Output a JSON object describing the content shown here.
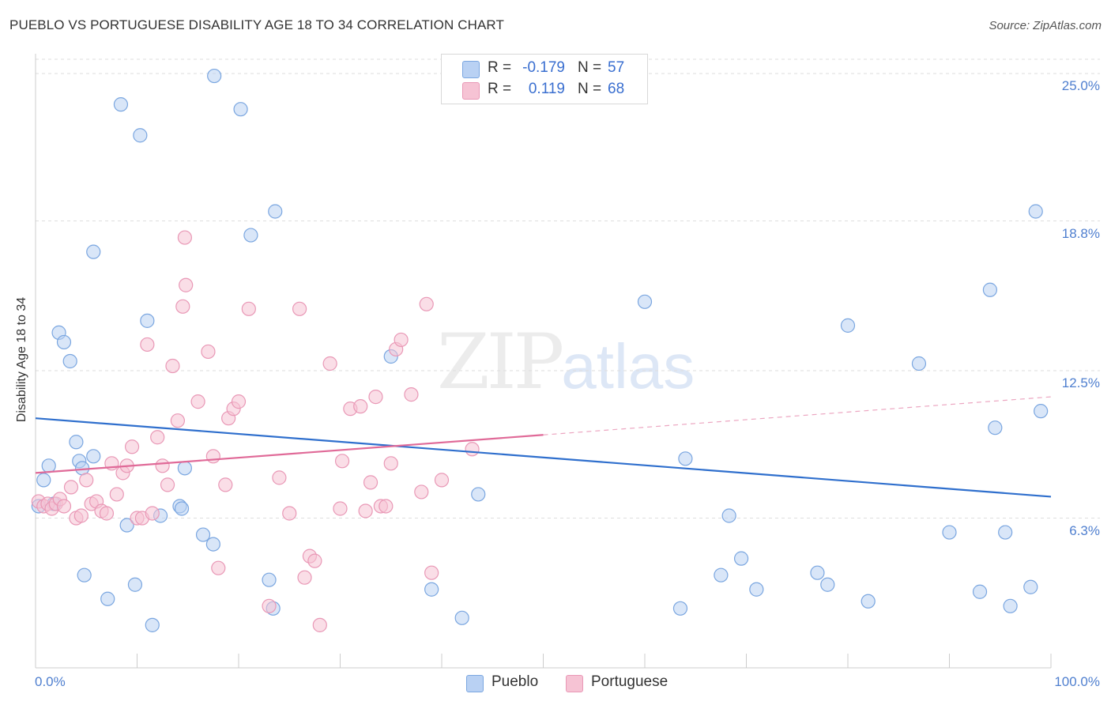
{
  "header": {
    "title": "PUEBLO VS PORTUGUESE DISABILITY AGE 18 TO 34 CORRELATION CHART",
    "source": "Source: ZipAtlas.com"
  },
  "watermark": {
    "zip": "ZIP",
    "atlas": "atlas"
  },
  "legend": {
    "pueblo": {
      "r_label": "R =",
      "r_value": "-0.179",
      "n_label": "N =",
      "n_value": "57"
    },
    "portuguese": {
      "r_label": "R =",
      "r_value": "0.119",
      "n_label": "N =",
      "n_value": "68"
    }
  },
  "bottom_legend": {
    "pueblo": "Pueblo",
    "portuguese": "Portuguese"
  },
  "colors": {
    "pueblo_fill": "#b9d1f3",
    "pueblo_stroke": "#7aa6e0",
    "pueblo_line": "#2f6fcd",
    "portuguese_fill": "#f6c3d4",
    "portuguese_stroke": "#e998b6",
    "portuguese_line": "#e06a98",
    "tick_label": "#4f7fcf"
  },
  "chart_data": {
    "type": "scatter",
    "title": "PUEBLO VS PORTUGUESE DISABILITY AGE 18 TO 34 CORRELATION CHART",
    "xlabel": "",
    "ylabel": "Disability Age 18 to 34",
    "xlim": [
      0,
      100
    ],
    "ylim": [
      0,
      25.6
    ],
    "x_tick_labels": [
      "0.0%",
      "100.0%"
    ],
    "y_ticks": [
      6.3,
      12.5,
      18.8,
      25.0
    ],
    "y_tick_labels": [
      "6.3%",
      "12.5%",
      "18.8%",
      "25.0%"
    ],
    "grid": "horizontal dashed",
    "legend_position": "top-center",
    "series": [
      {
        "name": "Pueblo",
        "points": [
          [
            0.3,
            6.8
          ],
          [
            0.8,
            7.9
          ],
          [
            1.3,
            8.5
          ],
          [
            1.8,
            6.9
          ],
          [
            2.3,
            14.1
          ],
          [
            2.8,
            13.7
          ],
          [
            3.4,
            12.9
          ],
          [
            4.0,
            9.5
          ],
          [
            4.3,
            8.7
          ],
          [
            4.6,
            8.4
          ],
          [
            4.8,
            3.9
          ],
          [
            5.7,
            17.5
          ],
          [
            5.7,
            8.9
          ],
          [
            7.1,
            2.9
          ],
          [
            8.4,
            23.7
          ],
          [
            9.0,
            6.0
          ],
          [
            9.8,
            3.5
          ],
          [
            10.3,
            22.4
          ],
          [
            11.0,
            14.6
          ],
          [
            11.5,
            1.8
          ],
          [
            12.3,
            6.4
          ],
          [
            14.2,
            6.8
          ],
          [
            14.4,
            6.7
          ],
          [
            14.7,
            8.4
          ],
          [
            16.5,
            5.6
          ],
          [
            17.5,
            5.2
          ],
          [
            17.6,
            24.9
          ],
          [
            20.2,
            23.5
          ],
          [
            21.2,
            18.2
          ],
          [
            23.0,
            3.7
          ],
          [
            23.4,
            2.5
          ],
          [
            23.6,
            19.2
          ],
          [
            35.0,
            13.1
          ],
          [
            39.0,
            3.3
          ],
          [
            42.0,
            2.1
          ],
          [
            43.6,
            7.3
          ],
          [
            60.0,
            15.4
          ],
          [
            63.5,
            2.5
          ],
          [
            64.0,
            8.8
          ],
          [
            67.5,
            3.9
          ],
          [
            68.3,
            6.4
          ],
          [
            69.5,
            4.6
          ],
          [
            71.0,
            3.3
          ],
          [
            77.0,
            4.0
          ],
          [
            78.0,
            3.5
          ],
          [
            80.0,
            14.4
          ],
          [
            82.0,
            2.8
          ],
          [
            87.0,
            12.8
          ],
          [
            90.0,
            5.7
          ],
          [
            93.0,
            3.2
          ],
          [
            94.0,
            15.9
          ],
          [
            94.5,
            10.1
          ],
          [
            95.5,
            5.7
          ],
          [
            96.0,
            2.6
          ],
          [
            98.0,
            3.4
          ],
          [
            98.5,
            19.2
          ],
          [
            99.0,
            10.8
          ]
        ],
        "trend": {
          "x": [
            0,
            100
          ],
          "y": [
            10.5,
            7.2
          ]
        }
      },
      {
        "name": "Portuguese",
        "points": [
          [
            0.3,
            7.0
          ],
          [
            0.8,
            6.8
          ],
          [
            1.2,
            6.9
          ],
          [
            1.6,
            6.7
          ],
          [
            2.0,
            6.9
          ],
          [
            2.4,
            7.1
          ],
          [
            2.8,
            6.8
          ],
          [
            3.5,
            7.6
          ],
          [
            4.0,
            6.3
          ],
          [
            4.5,
            6.4
          ],
          [
            5.0,
            7.9
          ],
          [
            5.5,
            6.9
          ],
          [
            6.0,
            7.0
          ],
          [
            6.5,
            6.6
          ],
          [
            7.0,
            6.5
          ],
          [
            7.5,
            8.6
          ],
          [
            8.0,
            7.3
          ],
          [
            8.6,
            8.2
          ],
          [
            9.0,
            8.5
          ],
          [
            9.5,
            9.3
          ],
          [
            10.0,
            6.3
          ],
          [
            10.5,
            6.3
          ],
          [
            11.0,
            13.6
          ],
          [
            11.5,
            6.5
          ],
          [
            12.0,
            9.7
          ],
          [
            12.5,
            8.5
          ],
          [
            13.0,
            7.7
          ],
          [
            13.5,
            12.7
          ],
          [
            14.0,
            10.4
          ],
          [
            14.5,
            15.2
          ],
          [
            14.7,
            18.1
          ],
          [
            14.8,
            16.1
          ],
          [
            16.0,
            11.2
          ],
          [
            17.0,
            13.3
          ],
          [
            17.5,
            8.9
          ],
          [
            18.0,
            4.2
          ],
          [
            18.7,
            7.7
          ],
          [
            19.0,
            10.5
          ],
          [
            19.5,
            10.9
          ],
          [
            20.0,
            11.2
          ],
          [
            21.0,
            15.1
          ],
          [
            23.0,
            2.6
          ],
          [
            24.0,
            8.0
          ],
          [
            25.0,
            6.5
          ],
          [
            26.0,
            15.1
          ],
          [
            26.5,
            3.8
          ],
          [
            27.0,
            4.7
          ],
          [
            27.5,
            4.5
          ],
          [
            28.0,
            1.8
          ],
          [
            29.0,
            12.8
          ],
          [
            30.0,
            6.7
          ],
          [
            30.2,
            8.7
          ],
          [
            31.0,
            10.9
          ],
          [
            32.0,
            11.0
          ],
          [
            32.5,
            6.6
          ],
          [
            33.0,
            7.8
          ],
          [
            33.5,
            11.4
          ],
          [
            34.0,
            6.8
          ],
          [
            34.5,
            6.8
          ],
          [
            35.0,
            8.6
          ],
          [
            35.5,
            13.4
          ],
          [
            36.0,
            13.8
          ],
          [
            37.0,
            11.5
          ],
          [
            38.0,
            7.4
          ],
          [
            38.5,
            15.3
          ],
          [
            39.0,
            4.0
          ],
          [
            40.0,
            7.9
          ],
          [
            43.0,
            9.2
          ]
        ],
        "trend": {
          "x": [
            0,
            50
          ],
          "y": [
            8.2,
            9.8
          ],
          "dashed_extension": {
            "x": [
              50,
              100
            ],
            "y": [
              9.8,
              11.4
            ]
          }
        }
      }
    ]
  }
}
